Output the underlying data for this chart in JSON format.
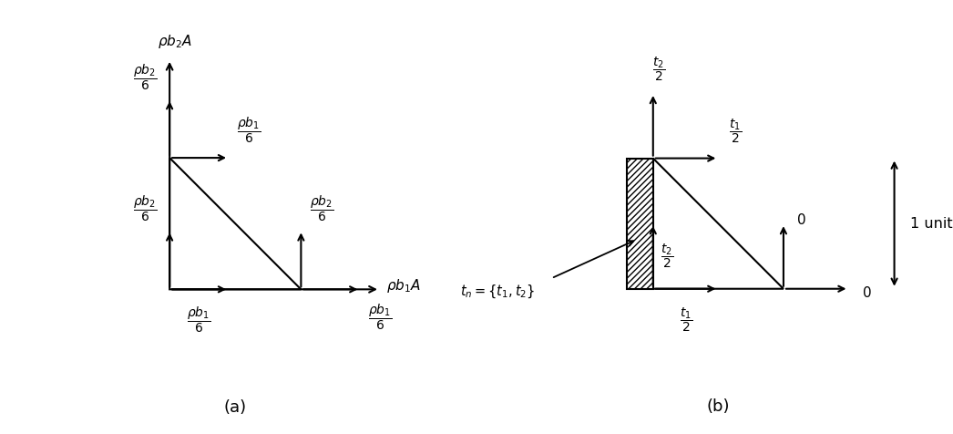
{
  "fig_width": 10.46,
  "fig_height": 4.76,
  "bg_color": "#ffffff",
  "label_a": "(a)",
  "label_b": "(b)"
}
